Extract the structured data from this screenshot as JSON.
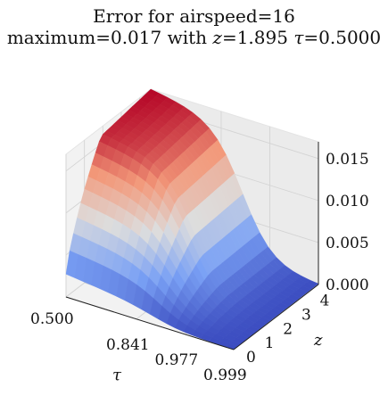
{
  "title": {
    "line1": "Error for airspeed=16",
    "line2_prefix": "maximum=0.017 with ",
    "z_symbol": "z",
    "z_value": "=1.895 ",
    "tau_symbol": "τ",
    "tau_value": "=0.5000"
  },
  "chart_data": {
    "type": "surface",
    "colormap": "coolwarm",
    "grid": true,
    "x_axis": {
      "label": "τ",
      "ticks": [
        "0.500",
        "0.841",
        "0.977",
        "0.999"
      ]
    },
    "y_axis": {
      "label": "z",
      "ticks": [
        "0",
        "1",
        "2",
        "3",
        "4"
      ]
    },
    "z_axis": {
      "ticks": [
        "0.000",
        "0.005",
        "0.010",
        "0.015"
      ],
      "zlim": [
        0,
        0.017
      ]
    },
    "tau_index": [
      0,
      1,
      2,
      3,
      4,
      5,
      6,
      7,
      8,
      9,
      10,
      11,
      12,
      13,
      14,
      15,
      16,
      17,
      18,
      19,
      20
    ],
    "z": [
      0,
      0.2,
      0.4,
      0.6,
      0.8,
      1.0,
      1.2,
      1.4,
      1.6,
      1.8,
      2.0,
      2.2,
      2.4,
      2.6,
      2.8,
      3.0,
      3.2,
      3.4,
      3.6,
      3.8,
      4.0,
      4.2,
      4.4,
      4.6
    ],
    "error_summary": {
      "max_error": 0.017,
      "max_at": {
        "z": 1.895,
        "tau": 0.5
      }
    }
  }
}
